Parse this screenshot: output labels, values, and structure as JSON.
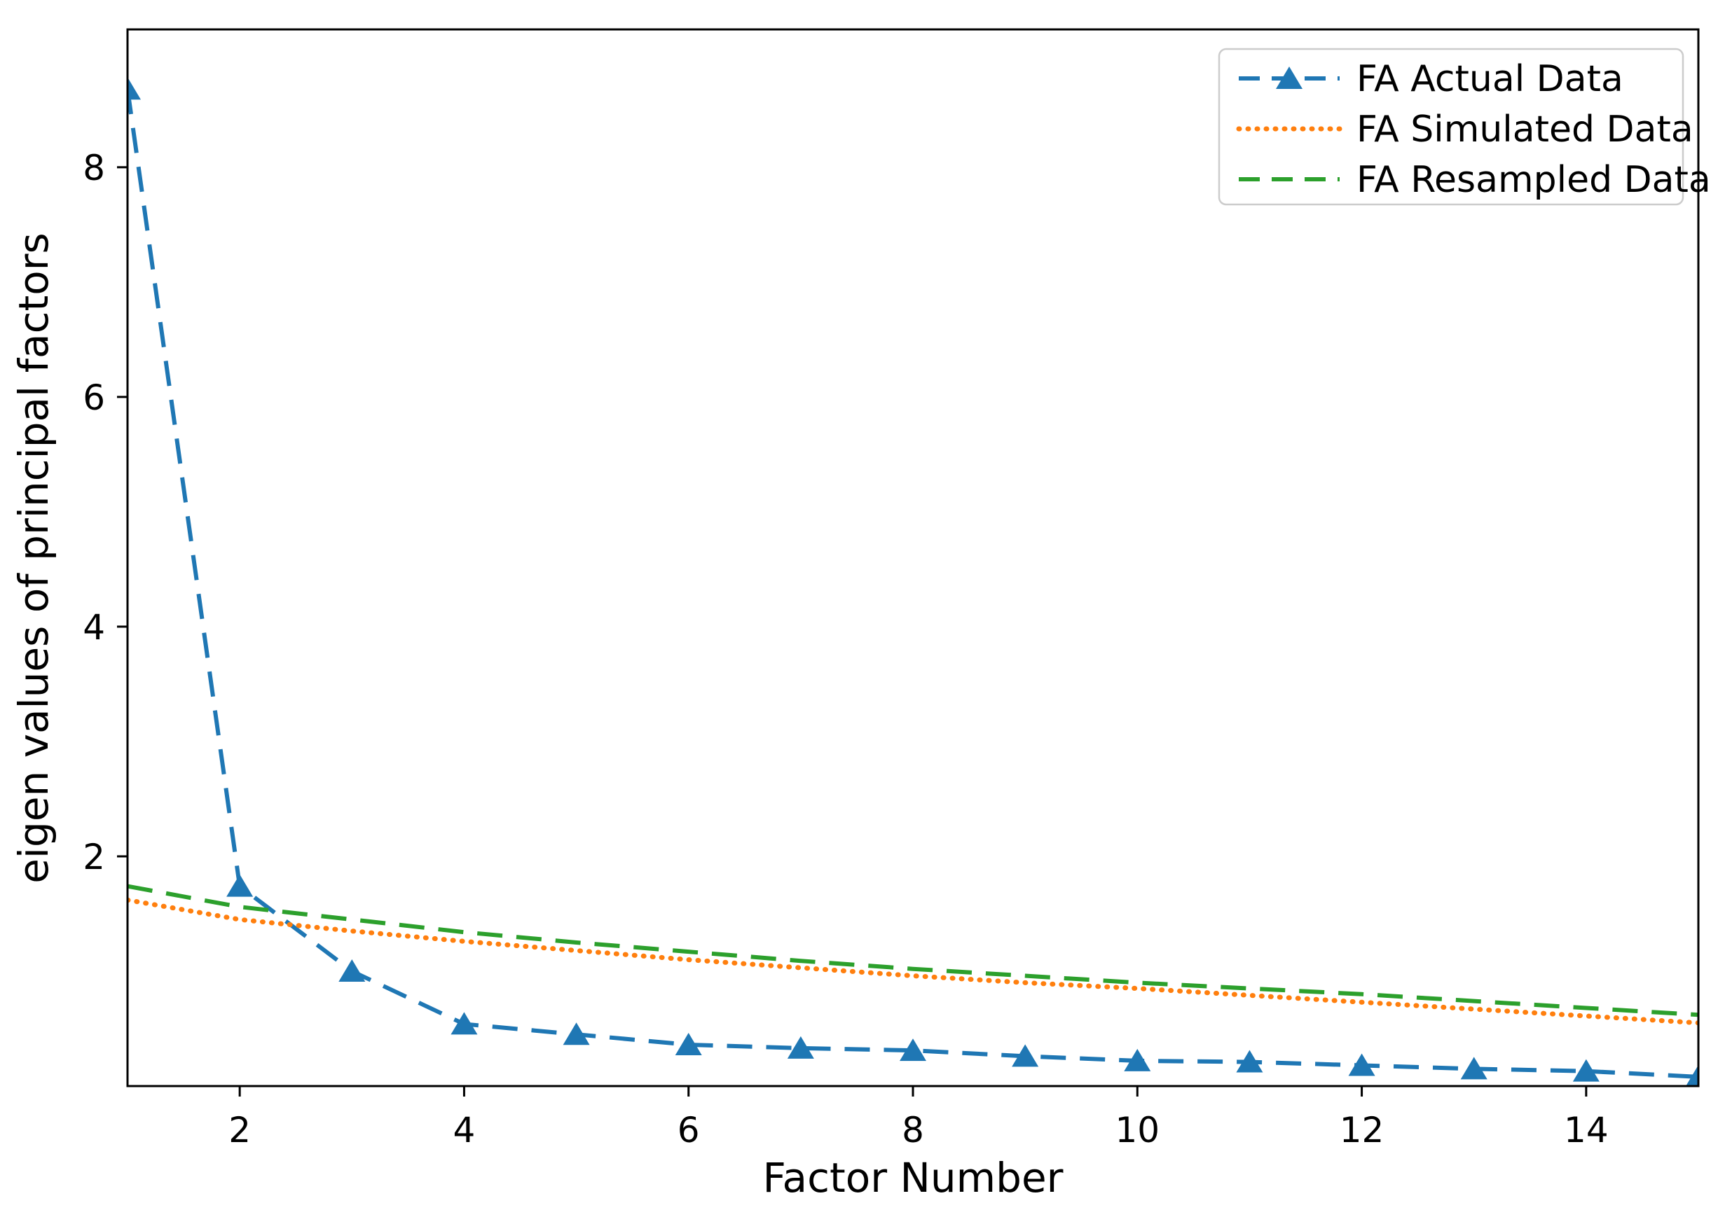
{
  "figure": {
    "background": "#ffffff",
    "plot_background": "#ffffff",
    "spine_color": "#000000",
    "text_color": "#000000"
  },
  "chart_data": {
    "type": "line",
    "title": "",
    "xlabel": "Factor Number",
    "ylabel": "eigen values of principal factors",
    "x": [
      1,
      2,
      3,
      4,
      5,
      6,
      7,
      8,
      9,
      10,
      11,
      12,
      13,
      14,
      15
    ],
    "xlim": [
      1,
      15
    ],
    "ylim": [
      0,
      9.2
    ],
    "xticks": [
      2,
      4,
      6,
      8,
      10,
      12,
      14
    ],
    "yticks": [
      2,
      4,
      6,
      8
    ],
    "grid": false,
    "legend_position": "upper right",
    "series": [
      {
        "name": "FA Actual Data",
        "color": "#1f77b4",
        "linestyle": "dashed",
        "marker": "triangle-up",
        "values": [
          8.68,
          1.74,
          1.0,
          0.54,
          0.45,
          0.36,
          0.33,
          0.31,
          0.26,
          0.22,
          0.21,
          0.18,
          0.15,
          0.13,
          0.08
        ]
      },
      {
        "name": "FA Simulated Data",
        "color": "#ff7f0e",
        "linestyle": "dotted",
        "marker": "none",
        "values": [
          1.62,
          1.45,
          1.35,
          1.26,
          1.18,
          1.1,
          1.03,
          0.96,
          0.9,
          0.85,
          0.79,
          0.73,
          0.67,
          0.61,
          0.55
        ]
      },
      {
        "name": "FA Resampled Data",
        "color": "#2ca02c",
        "linestyle": "dashed",
        "marker": "none",
        "values": [
          1.74,
          1.56,
          1.45,
          1.34,
          1.25,
          1.17,
          1.09,
          1.02,
          0.96,
          0.9,
          0.85,
          0.8,
          0.74,
          0.68,
          0.62
        ]
      }
    ],
    "legend": {
      "labels": [
        "FA Actual Data",
        "FA Simulated Data",
        "FA Resampled Data"
      ],
      "border_color": "#cccccc",
      "background": "#ffffff"
    }
  }
}
